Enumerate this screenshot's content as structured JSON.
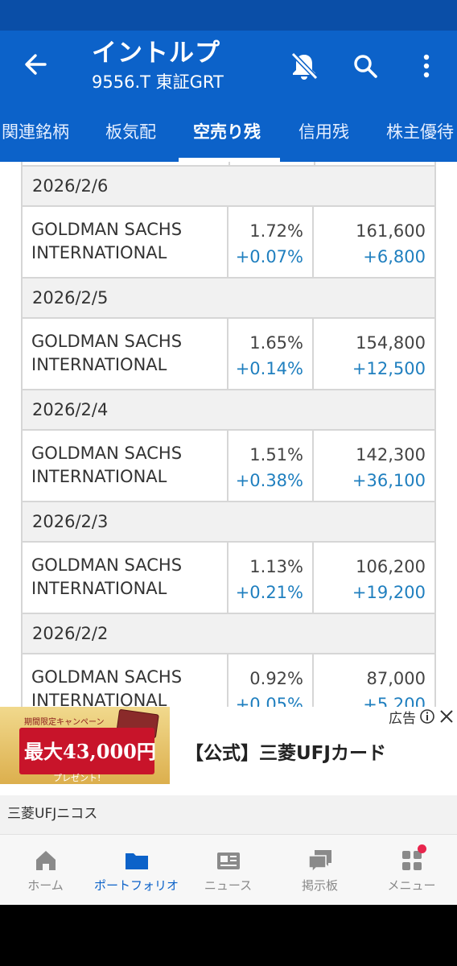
{
  "header": {
    "title": "イントルプ",
    "subtitle": "9556.T 東証GRT"
  },
  "tabs": [
    {
      "label": "関連銘柄"
    },
    {
      "label": "板気配"
    },
    {
      "label": "空売り残"
    },
    {
      "label": "信用残"
    },
    {
      "label": "株主優待"
    }
  ],
  "active_tab": "空売り残",
  "short_positions": [
    {
      "date": "2026/2/6",
      "institution_line1": "GOLDMAN SACHS",
      "institution_line2": "INTERNATIONAL",
      "ratio": "1.72%",
      "ratio_change": "+0.07%",
      "shares": "161,600",
      "shares_change": "+6,800"
    },
    {
      "date": "2026/2/5",
      "institution_line1": "GOLDMAN SACHS",
      "institution_line2": "INTERNATIONAL",
      "ratio": "1.65%",
      "ratio_change": "+0.14%",
      "shares": "154,800",
      "shares_change": "+12,500"
    },
    {
      "date": "2026/2/4",
      "institution_line1": "GOLDMAN SACHS",
      "institution_line2": "INTERNATIONAL",
      "ratio": "1.51%",
      "ratio_change": "+0.38%",
      "shares": "142,300",
      "shares_change": "+36,100"
    },
    {
      "date": "2026/2/3",
      "institution_line1": "GOLDMAN SACHS",
      "institution_line2": "INTERNATIONAL",
      "ratio": "1.13%",
      "ratio_change": "+0.21%",
      "shares": "106,200",
      "shares_change": "+19,200"
    },
    {
      "date": "2026/2/2",
      "institution_line1": "GOLDMAN SACHS",
      "institution_line2": "INTERNATIONAL",
      "ratio": "0.92%",
      "ratio_change": "+0.05%",
      "shares": "87,000",
      "shares_change": "+5,200"
    }
  ],
  "ad": {
    "badge": "広告",
    "campaign_text": "期間限定キャンペーン",
    "amount_text": "最大43,000円",
    "present_text": "プレゼント!",
    "title": "【公式】三菱UFJカード",
    "advertiser": "三菱UFJニコス"
  },
  "bottom_nav": [
    {
      "label": "ホーム",
      "icon": "home-icon"
    },
    {
      "label": "ポートフォリオ",
      "icon": "folder-icon"
    },
    {
      "label": "ニュース",
      "icon": "news-icon"
    },
    {
      "label": "掲示板",
      "icon": "chat-icon"
    },
    {
      "label": "メニュー",
      "icon": "grid-icon"
    }
  ],
  "colors": {
    "appbar": "#0c62c9",
    "statusbar": "#0a4ea7",
    "positive_change": "#1f7fbf",
    "nav_active": "#0c62c9",
    "notification_dot": "#e8264d"
  }
}
